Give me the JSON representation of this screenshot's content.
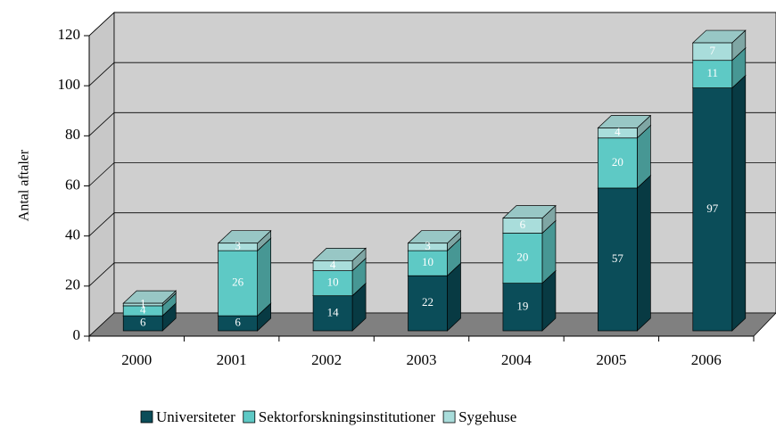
{
  "chart_data": {
    "type": "bar3d_stacked",
    "y_label": "Antal aftaler",
    "categories": [
      "2000",
      "2001",
      "2002",
      "2003",
      "2004",
      "2005",
      "2006"
    ],
    "series": [
      {
        "name": "Universiteter",
        "color": "#0b4d59",
        "values": [
          6,
          6,
          14,
          22,
          19,
          57,
          97
        ]
      },
      {
        "name": "Sektorforskningsinstitutioner",
        "color": "#5ec9c5",
        "values": [
          4,
          26,
          10,
          10,
          20,
          20,
          11
        ]
      },
      {
        "name": "Sygehuse",
        "color": "#a9dddb",
        "values": [
          1,
          3,
          4,
          3,
          6,
          4,
          7
        ]
      }
    ],
    "ylim": [
      0,
      120
    ],
    "yticks": [
      0,
      20,
      40,
      60,
      80,
      100,
      120
    ],
    "grid": true,
    "legend": "bottom"
  }
}
